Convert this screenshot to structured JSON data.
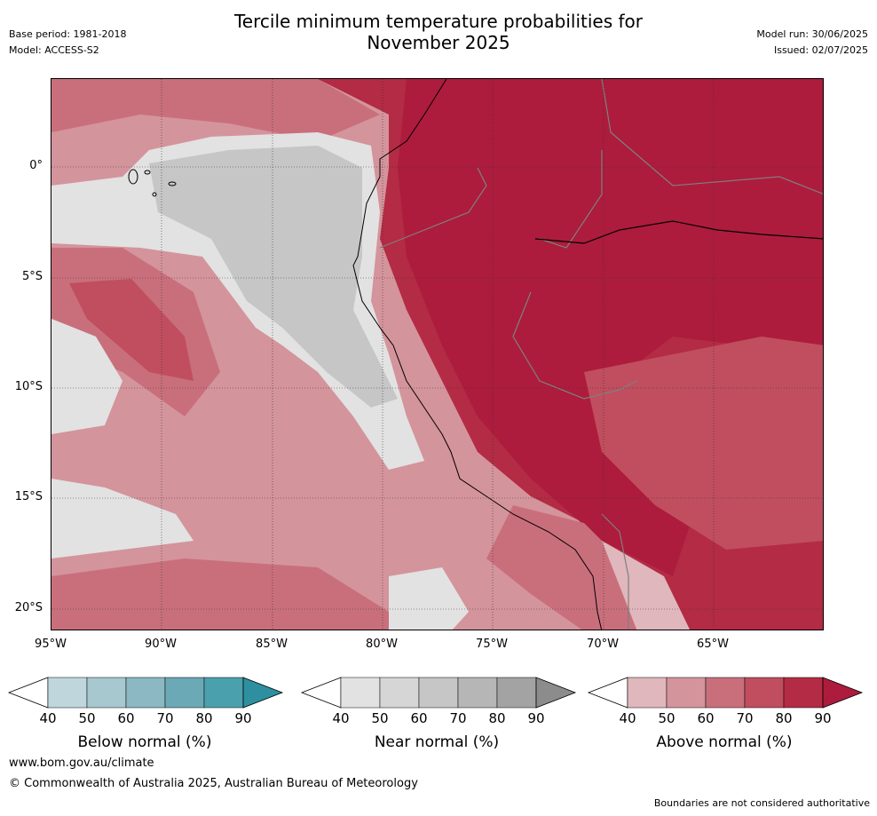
{
  "header": {
    "title_line1": "Tercile minimum temperature probabilities for",
    "title_line2": "November 2025",
    "base_period": "Base period: 1981-2018",
    "model": "Model: ACCESS-S2",
    "model_run": "Model run: 30/06/2025",
    "issued": "Issued: 02/07/2025"
  },
  "map": {
    "lon_ticks": [
      "95°W",
      "90°W",
      "85°W",
      "80°W",
      "75°W",
      "70°W",
      "65°W"
    ],
    "lat_ticks": [
      "0°",
      "5°S",
      "10°S",
      "15°S",
      "20°S"
    ],
    "lon_range": [
      -95,
      -60
    ],
    "lat_range": [
      -21,
      4
    ],
    "region_colors": {
      "ocean_above": "#d58f97",
      "near_normal": "#c6c6c6",
      "land_above": "#b01e3a"
    }
  },
  "colorbars": [
    {
      "title": "Below normal (%)",
      "labels": [
        "40",
        "50",
        "60",
        "70",
        "80",
        "90"
      ],
      "colors": [
        "#bfd7dc",
        "#a7c8cf",
        "#8bb8c2",
        "#6aa9b5",
        "#4ba0ae",
        "#2d8fa0"
      ]
    },
    {
      "title": "Near normal (%)",
      "labels": [
        "40",
        "50",
        "60",
        "70",
        "80",
        "90"
      ],
      "colors": [
        "#e2e2e2",
        "#d6d6d6",
        "#c6c6c6",
        "#b6b6b6",
        "#a3a3a3",
        "#8c8c8c"
      ]
    },
    {
      "title": "Above normal (%)",
      "labels": [
        "40",
        "50",
        "60",
        "70",
        "80",
        "90"
      ],
      "colors": [
        "#e0b7bc",
        "#d4949c",
        "#c96f7c",
        "#c04e5f",
        "#b32b44",
        "#ad1c3c"
      ]
    }
  ],
  "footer": {
    "url": "www.bom.gov.au/climate",
    "copyright": "© Commonwealth of Australia 2025, Australian Bureau of Meteorology",
    "disclaimer": "Boundaries are not considered authoritative"
  }
}
